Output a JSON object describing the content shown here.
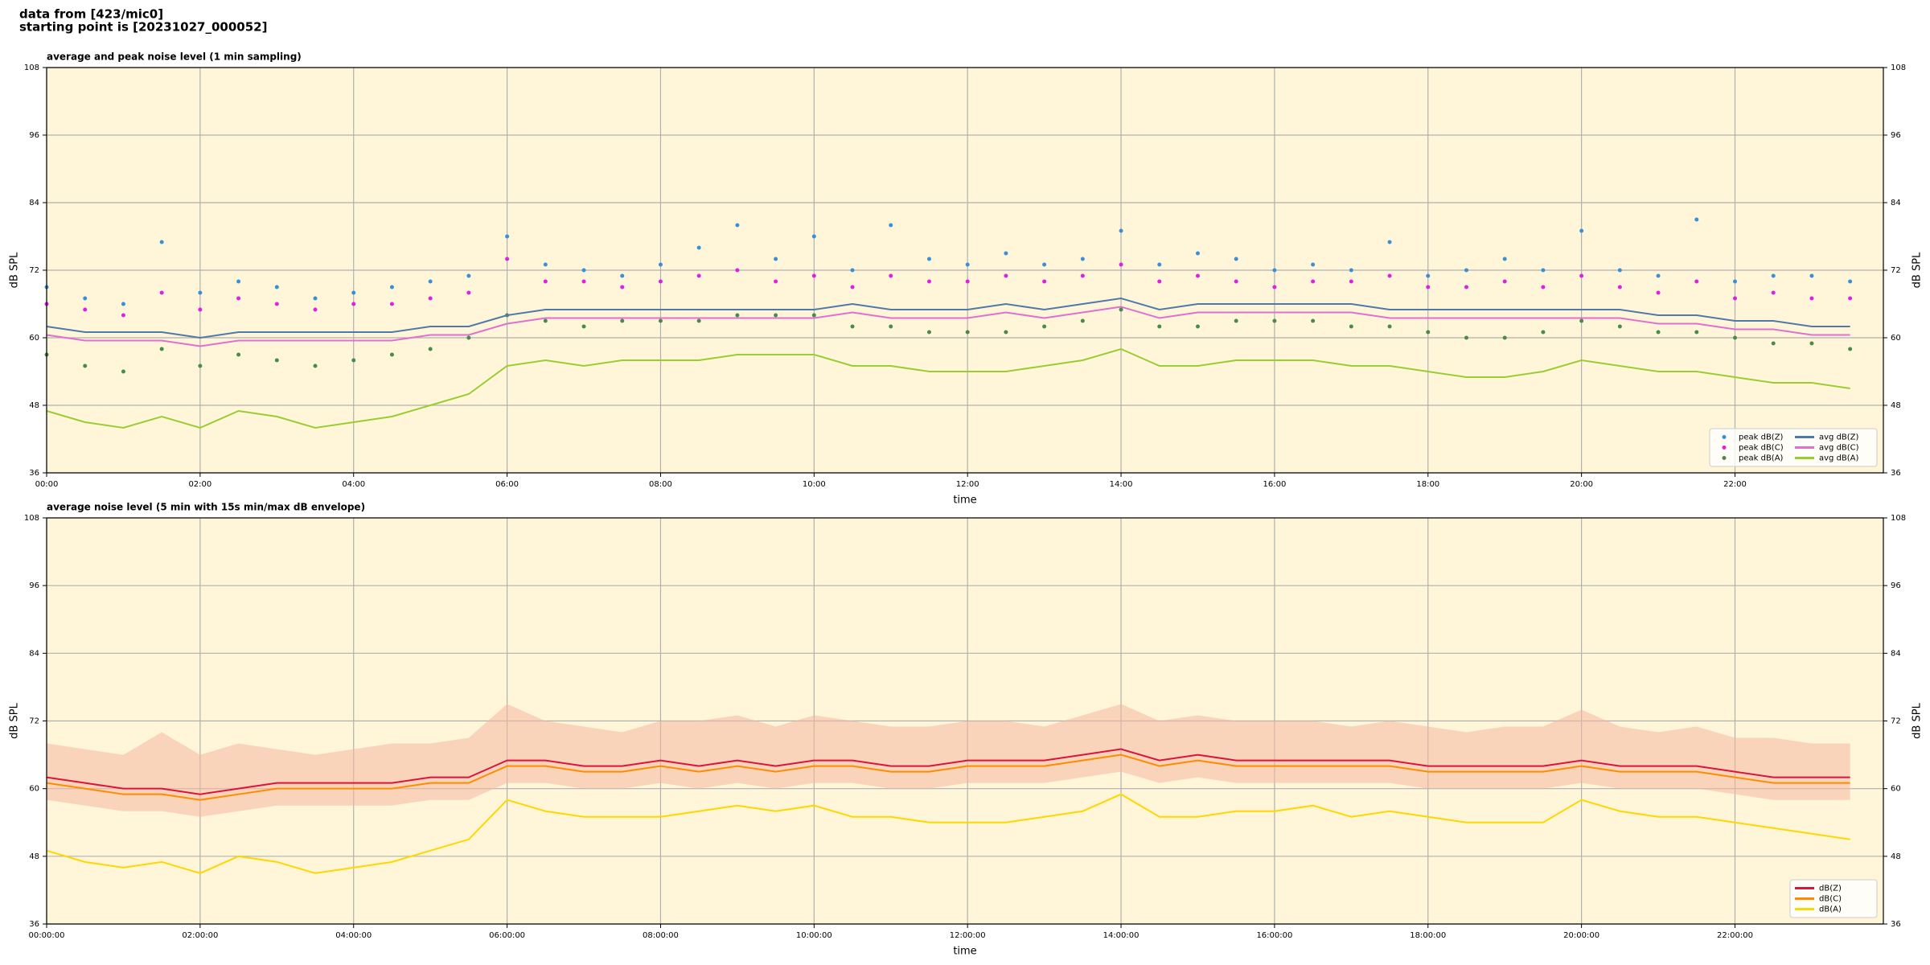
{
  "header": {
    "line1": "data from [423/mic0]",
    "line2": "starting point is [20231027_000052]"
  },
  "chart_data": [
    {
      "type": "line",
      "title": "average and peak noise level (1 min sampling)",
      "x_label": "time",
      "y_label": "dB SPL",
      "xlim": [
        0,
        1436
      ],
      "ylim": [
        36,
        108
      ],
      "yticks": [
        36,
        48,
        60,
        72,
        84,
        96,
        108
      ],
      "grid": true,
      "legend": "lower right",
      "legend_columns": 2,
      "xticks": [
        {
          "value": 0,
          "label": "00:00"
        },
        {
          "value": 120,
          "label": "02:00"
        },
        {
          "value": 240,
          "label": "04:00"
        },
        {
          "value": 360,
          "label": "06:00"
        },
        {
          "value": 480,
          "label": "08:00"
        },
        {
          "value": 600,
          "label": "10:00"
        },
        {
          "value": 720,
          "label": "12:00"
        },
        {
          "value": 840,
          "label": "14:00"
        },
        {
          "value": 960,
          "label": "16:00"
        },
        {
          "value": 1080,
          "label": "18:00"
        },
        {
          "value": 1200,
          "label": "20:00"
        },
        {
          "value": 1320,
          "label": "22:00"
        }
      ],
      "x": [
        0,
        30,
        60,
        90,
        120,
        150,
        180,
        210,
        240,
        270,
        300,
        330,
        360,
        390,
        420,
        450,
        480,
        510,
        540,
        570,
        600,
        630,
        660,
        690,
        720,
        750,
        780,
        810,
        840,
        870,
        900,
        930,
        960,
        990,
        1020,
        1050,
        1080,
        1110,
        1140,
        1170,
        1200,
        1230,
        1260,
        1290,
        1320,
        1350,
        1380,
        1410
      ],
      "series": [
        {
          "name": "peak dB(Z)",
          "type": "scatter",
          "color": "#3a8fd6",
          "values": [
            69,
            67,
            66,
            77,
            68,
            70,
            69,
            67,
            68,
            69,
            70,
            71,
            78,
            73,
            72,
            71,
            73,
            76,
            80,
            74,
            78,
            72,
            80,
            74,
            73,
            75,
            73,
            74,
            79,
            73,
            75,
            74,
            72,
            73,
            72,
            77,
            71,
            72,
            74,
            72,
            79,
            72,
            71,
            81,
            70,
            71,
            71,
            70
          ]
        },
        {
          "name": "peak dB(C)",
          "type": "scatter",
          "color": "#e020e0",
          "values": [
            66,
            65,
            64,
            68,
            65,
            67,
            66,
            65,
            66,
            66,
            67,
            68,
            74,
            70,
            70,
            69,
            70,
            71,
            72,
            70,
            71,
            69,
            71,
            70,
            70,
            71,
            70,
            71,
            73,
            70,
            71,
            70,
            69,
            70,
            70,
            71,
            69,
            69,
            70,
            69,
            71,
            69,
            68,
            70,
            67,
            68,
            67,
            67
          ]
        },
        {
          "name": "peak dB(A)",
          "type": "scatter",
          "color": "#4a8a4a",
          "values": [
            57,
            55,
            54,
            58,
            55,
            57,
            56,
            55,
            56,
            57,
            58,
            60,
            64,
            63,
            62,
            63,
            63,
            63,
            64,
            64,
            64,
            62,
            62,
            61,
            61,
            61,
            62,
            63,
            65,
            62,
            62,
            63,
            63,
            63,
            62,
            62,
            61,
            60,
            60,
            61,
            63,
            62,
            61,
            61,
            60,
            59,
            59,
            58
          ]
        },
        {
          "name": "avg dB(Z)",
          "type": "line",
          "color": "#4f79a8",
          "values": [
            62,
            61,
            61,
            61,
            60,
            61,
            61,
            61,
            61,
            61,
            62,
            62,
            64,
            65,
            65,
            65,
            65,
            65,
            65,
            65,
            65,
            66,
            65,
            65,
            65,
            66,
            65,
            66,
            67,
            65,
            66,
            66,
            66,
            66,
            66,
            65,
            65,
            65,
            65,
            65,
            65,
            65,
            64,
            64,
            63,
            63,
            62,
            62
          ]
        },
        {
          "name": "avg dB(C)",
          "type": "line",
          "color": "#e070d0",
          "values": [
            60.5,
            59.5,
            59.5,
            59.5,
            58.5,
            59.5,
            59.5,
            59.5,
            59.5,
            59.5,
            60.5,
            60.5,
            62.5,
            63.5,
            63.5,
            63.5,
            63.5,
            63.5,
            63.5,
            63.5,
            63.5,
            64.5,
            63.5,
            63.5,
            63.5,
            64.5,
            63.5,
            64.5,
            65.5,
            63.5,
            64.5,
            64.5,
            64.5,
            64.5,
            64.5,
            63.5,
            63.5,
            63.5,
            63.5,
            63.5,
            63.5,
            63.5,
            62.5,
            62.5,
            61.5,
            61.5,
            60.5,
            60.5
          ]
        },
        {
          "name": "avg dB(A)",
          "type": "line",
          "color": "#9acd32",
          "values": [
            47,
            45,
            44,
            46,
            44,
            47,
            46,
            44,
            45,
            46,
            48,
            50,
            55,
            56,
            55,
            56,
            56,
            56,
            57,
            57,
            57,
            55,
            55,
            54,
            54,
            54,
            55,
            56,
            58,
            55,
            55,
            56,
            56,
            56,
            55,
            55,
            54,
            53,
            53,
            54,
            56,
            55,
            54,
            54,
            53,
            52,
            52,
            51
          ]
        }
      ]
    },
    {
      "type": "line",
      "title": "average noise level (5 min with 15s min/max dB envelope)",
      "x_label": "time",
      "y_label": "dB SPL",
      "xlim": [
        0,
        1436
      ],
      "ylim": [
        36,
        108
      ],
      "yticks": [
        36,
        48,
        60,
        72,
        84,
        96,
        108
      ],
      "grid": true,
      "legend": "lower right",
      "legend_columns": 1,
      "xticks": [
        {
          "value": 0,
          "label": "00:00:00"
        },
        {
          "value": 120,
          "label": "02:00:00"
        },
        {
          "value": 240,
          "label": "04:00:00"
        },
        {
          "value": 360,
          "label": "06:00:00"
        },
        {
          "value": 480,
          "label": "08:00:00"
        },
        {
          "value": 600,
          "label": "10:00:00"
        },
        {
          "value": 720,
          "label": "12:00:00"
        },
        {
          "value": 840,
          "label": "14:00:00"
        },
        {
          "value": 960,
          "label": "16:00:00"
        },
        {
          "value": 1080,
          "label": "18:00:00"
        },
        {
          "value": 1200,
          "label": "20:00:00"
        },
        {
          "value": 1320,
          "label": "22:00:00"
        }
      ],
      "x": [
        0,
        30,
        60,
        90,
        120,
        150,
        180,
        210,
        240,
        270,
        300,
        330,
        360,
        390,
        420,
        450,
        480,
        510,
        540,
        570,
        600,
        630,
        660,
        690,
        720,
        750,
        780,
        810,
        840,
        870,
        900,
        930,
        960,
        990,
        1020,
        1050,
        1080,
        1110,
        1140,
        1170,
        1200,
        1230,
        1260,
        1290,
        1320,
        1350,
        1380,
        1410
      ],
      "envelope": {
        "color": "#f4b8a0",
        "upper": [
          68,
          67,
          66,
          70,
          66,
          68,
          67,
          66,
          67,
          68,
          68,
          69,
          75,
          72,
          71,
          70,
          72,
          72,
          73,
          71,
          73,
          72,
          71,
          71,
          72,
          72,
          71,
          73,
          75,
          72,
          73,
          72,
          72,
          72,
          71,
          72,
          71,
          70,
          71,
          71,
          74,
          71,
          70,
          71,
          69,
          69,
          68,
          68
        ],
        "lower": [
          58,
          57,
          56,
          56,
          55,
          56,
          57,
          57,
          57,
          57,
          58,
          58,
          61,
          61,
          60,
          60,
          61,
          60,
          61,
          60,
          61,
          61,
          60,
          60,
          61,
          61,
          61,
          62,
          63,
          61,
          62,
          61,
          61,
          61,
          61,
          61,
          60,
          60,
          60,
          60,
          61,
          60,
          60,
          60,
          59,
          58,
          58,
          58
        ]
      },
      "series": [
        {
          "name": "dB(Z)",
          "type": "line",
          "color": "#dc143c",
          "values": [
            62,
            61,
            60,
            60,
            59,
            60,
            61,
            61,
            61,
            61,
            62,
            62,
            65,
            65,
            64,
            64,
            65,
            64,
            65,
            64,
            65,
            65,
            64,
            64,
            65,
            65,
            65,
            66,
            67,
            65,
            66,
            65,
            65,
            65,
            65,
            65,
            64,
            64,
            64,
            64,
            65,
            64,
            64,
            64,
            63,
            62,
            62,
            62
          ]
        },
        {
          "name": "dB(C)",
          "type": "line",
          "color": "#ff8c00",
          "values": [
            61,
            60,
            59,
            59,
            58,
            59,
            60,
            60,
            60,
            60,
            61,
            61,
            64,
            64,
            63,
            63,
            64,
            63,
            64,
            63,
            64,
            64,
            63,
            63,
            64,
            64,
            64,
            65,
            66,
            64,
            65,
            64,
            64,
            64,
            64,
            64,
            63,
            63,
            63,
            63,
            64,
            63,
            63,
            63,
            62,
            61,
            61,
            61
          ]
        },
        {
          "name": "dB(A)",
          "type": "line",
          "color": "#ffd700",
          "values": [
            49,
            47,
            46,
            47,
            45,
            48,
            47,
            45,
            46,
            47,
            49,
            51,
            58,
            56,
            55,
            55,
            55,
            56,
            57,
            56,
            57,
            55,
            55,
            54,
            54,
            54,
            55,
            56,
            59,
            55,
            55,
            56,
            56,
            57,
            55,
            56,
            55,
            54,
            54,
            54,
            58,
            56,
            55,
            55,
            54,
            53,
            52,
            51
          ]
        }
      ]
    }
  ]
}
